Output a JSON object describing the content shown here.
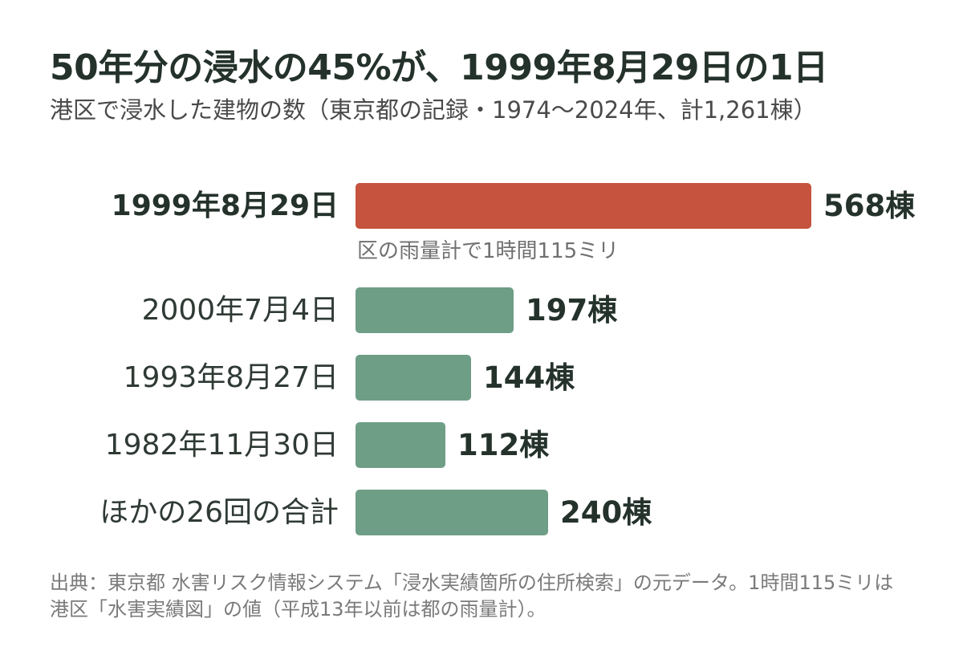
{
  "chart_data": {
    "type": "bar",
    "orientation": "horizontal",
    "title": "50年分の浸水の45%が、1999年8月29日の1日",
    "subtitle": "港区で浸水した建物の数（東京都の記録・1974〜2024年、計1,261棟）",
    "categories": [
      "1999年8月29日",
      "2000年7月4日",
      "1993年8月27日",
      "1982年11月30日",
      "ほかの26回の合計"
    ],
    "values": [
      568,
      197,
      144,
      112,
      240
    ],
    "value_labels": [
      "568棟",
      "197棟",
      "144棟",
      "112棟",
      "240棟"
    ],
    "highlight_index": 0,
    "annotation": "区の雨量計で1時間115ミリ",
    "colors": {
      "highlight": "#c5533e",
      "default": "#6e9e86",
      "text": "#24322b"
    },
    "xlim": [
      0,
      568
    ],
    "grid": false,
    "legend": "none"
  },
  "source": "出典：東京都 水害リスク情報システム「浸水実績箇所の住所検索」の元データ。1時間115ミリは港区「水害実績図」の値（平成13年以前は都の雨量計）。"
}
